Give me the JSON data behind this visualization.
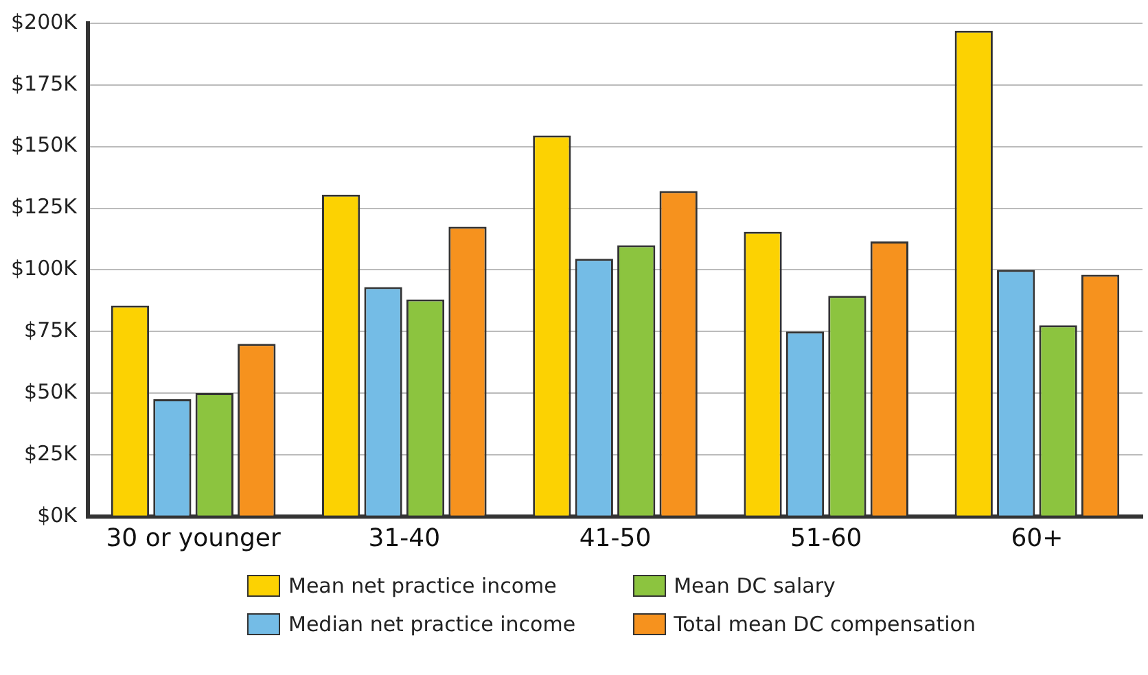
{
  "chart_data": {
    "type": "bar",
    "categories": [
      "30 or younger",
      "31-40",
      "41-50",
      "51-60",
      "60+"
    ],
    "series": [
      {
        "name": "Mean net practice income",
        "color": "#fcd202",
        "values": [
          85500,
          130500,
          154500,
          115500,
          197000
        ]
      },
      {
        "name": "Median net practice income",
        "color": "#74bce6",
        "values": [
          47500,
          93000,
          104500,
          75000,
          100000
        ]
      },
      {
        "name": "Mean DC salary",
        "color": "#8cc43f",
        "values": [
          50000,
          88000,
          110000,
          89500,
          77500
        ]
      },
      {
        "name": "Total mean DC compensation",
        "color": "#f6921e",
        "values": [
          70000,
          117500,
          132000,
          111500,
          98000
        ]
      }
    ],
    "ylim": [
      0,
      200000
    ],
    "yticks": [
      {
        "value": 0,
        "label": "$0K"
      },
      {
        "value": 25000,
        "label": "$25K"
      },
      {
        "value": 50000,
        "label": "$50K"
      },
      {
        "value": 75000,
        "label": "$75K"
      },
      {
        "value": 100000,
        "label": "$100K"
      },
      {
        "value": 125000,
        "label": "$125K"
      },
      {
        "value": 150000,
        "label": "$150K"
      },
      {
        "value": 175000,
        "label": "$175K"
      },
      {
        "value": 200000,
        "label": "$200K"
      }
    ],
    "grid": "y",
    "legend": "bottom"
  }
}
